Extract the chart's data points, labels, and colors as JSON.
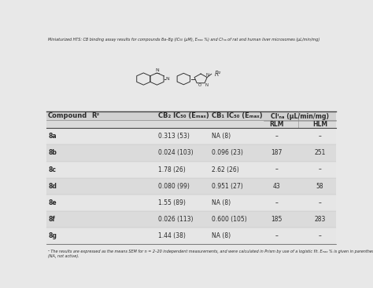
{
  "title_text": "Miniaturized HTS: CB binding assay results for compounds 8a–8g (IC₅₀ (μM), Eₘₐₓ %) and Clᴵₙₐ of rat and human liver microsomes (μL/min/mg)",
  "compounds": [
    "8a",
    "8b",
    "8c",
    "8d",
    "8e",
    "8f",
    "8g"
  ],
  "cb2_data": [
    "0.313 (53)",
    "0.024 (103)",
    "1.78 (26)",
    "0.080 (99)",
    "1.55 (89)",
    "0.026 (113)",
    "1.44 (38)"
  ],
  "cb1_data": [
    "NA (8)",
    "0.096 (23)",
    "2.62 (26)",
    "0.951 (27)",
    "NA (8)",
    "0.600 (105)",
    "NA (8)"
  ],
  "rlm_data": [
    "–",
    "187",
    "–",
    "43",
    "–",
    "185",
    "–"
  ],
  "hlm_data": [
    "–",
    "251",
    "–",
    "58",
    "–",
    "283",
    "–"
  ],
  "footnote": "ᵃ The results are expressed as the means SEM for n = 2–20 independent measurements, and were calculated in Prism by use of a logistic fit. Eₘₐₓ % is given in parentheses\n(NA, not active).",
  "bg_color": "#e8e8e8",
  "text_color": "#2a2a2a",
  "font_size": 5.5,
  "header_font_size": 6.0
}
